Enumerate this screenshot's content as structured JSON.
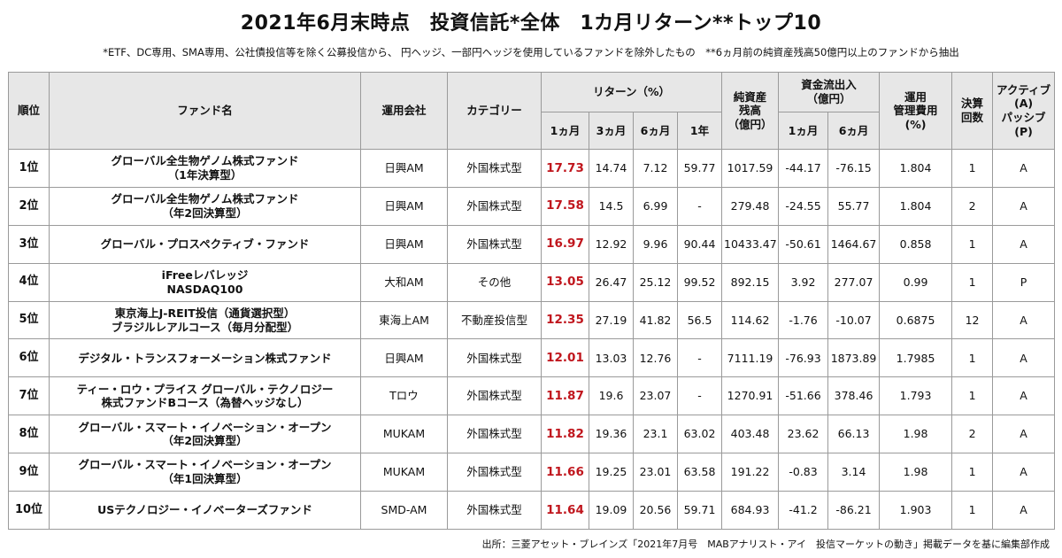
{
  "title": "2021年6月末時点　投資信託*全体　1カ月リターン**トップ10",
  "note": "*ETF、DC専用、SMA専用、公社債投信等を除く公募投信から、 円ヘッジ、一部円ヘッジを使用しているファンドを除外したもの　**6ヵ月前の純資産残高50億円以上のファンドから抽出",
  "source": "出所：三菱アセット・ブレインズ「2021年7月号　MABアナリスト・アイ　投信マーケットの動き」掲載データを基に編集部作成",
  "colors": {
    "header_bg": "#e7e7e7",
    "return_highlight": "#c0161d",
    "border": "#9a9a9a"
  },
  "headers": {
    "rank": "順位",
    "fund": "ファンド名",
    "company": "運用会社",
    "category": "カテゴリー",
    "return_group": "リターン（%）",
    "r1m": "1ヵ月",
    "r3m": "3ヵ月",
    "r6m": "6ヵ月",
    "r1y": "1年",
    "aum_l1": "純資産",
    "aum_l2": "残高",
    "aum_l3": "（億円）",
    "flow_group_l1": "資金流出入",
    "flow_group_l2": "（億円）",
    "f1m": "1ヵ月",
    "f6m": "6ヵ月",
    "fee_l1": "運用",
    "fee_l2": "管理費用",
    "fee_l3": "(%)",
    "settle_l1": "決算",
    "settle_l2": "回数",
    "ap_l1": "アクティブ",
    "ap_l2": "(A)",
    "ap_l3": "パッシブ",
    "ap_l4": "(P)"
  },
  "rows": [
    {
      "rank": "1位",
      "fund_l1": "グローバル全生物ゲノム株式ファンド",
      "fund_l2": "（1年決算型）",
      "company": "日興AM",
      "category": "外国株式型",
      "r1m": "17.73",
      "r3m": "14.74",
      "r6m": "7.12",
      "r1y": "59.77",
      "aum": "1017.59",
      "f1m": "-44.17",
      "f6m": "-76.15",
      "fee": "1.804",
      "settle": "1",
      "ap": "A"
    },
    {
      "rank": "2位",
      "fund_l1": "グローバル全生物ゲノム株式ファンド",
      "fund_l2": "（年2回決算型）",
      "company": "日興AM",
      "category": "外国株式型",
      "r1m": "17.58",
      "r3m": "14.5",
      "r6m": "6.99",
      "r1y": "-",
      "aum": "279.48",
      "f1m": "-24.55",
      "f6m": "55.77",
      "fee": "1.804",
      "settle": "2",
      "ap": "A"
    },
    {
      "rank": "3位",
      "fund_l1": "グローバル・プロスペクティブ・ファンド",
      "fund_l2": "",
      "company": "日興AM",
      "category": "外国株式型",
      "r1m": "16.97",
      "r3m": "12.92",
      "r6m": "9.96",
      "r1y": "90.44",
      "aum": "10433.47",
      "f1m": "-50.61",
      "f6m": "1464.67",
      "fee": "0.858",
      "settle": "1",
      "ap": "A"
    },
    {
      "rank": "4位",
      "fund_l1": "iFreeレバレッジ",
      "fund_l2": "NASDAQ100",
      "company": "大和AM",
      "category": "その他",
      "r1m": "13.05",
      "r3m": "26.47",
      "r6m": "25.12",
      "r1y": "99.52",
      "aum": "892.15",
      "f1m": "3.92",
      "f6m": "277.07",
      "fee": "0.99",
      "settle": "1",
      "ap": "P"
    },
    {
      "rank": "5位",
      "fund_l1": "東京海上J-REIT投信（通貨選択型）",
      "fund_l2": "ブラジルレアルコース（毎月分配型）",
      "company": "東海上AM",
      "category": "不動産投信型",
      "r1m": "12.35",
      "r3m": "27.19",
      "r6m": "41.82",
      "r1y": "56.5",
      "aum": "114.62",
      "f1m": "-1.76",
      "f6m": "-10.07",
      "fee": "0.6875",
      "settle": "12",
      "ap": "A"
    },
    {
      "rank": "6位",
      "fund_l1": "デジタル・トランスフォーメーション株式ファンド",
      "fund_l2": "",
      "company": "日興AM",
      "category": "外国株式型",
      "r1m": "12.01",
      "r3m": "13.03",
      "r6m": "12.76",
      "r1y": "-",
      "aum": "7111.19",
      "f1m": "-76.93",
      "f6m": "1873.89",
      "fee": "1.7985",
      "settle": "1",
      "ap": "A"
    },
    {
      "rank": "7位",
      "fund_l1": "ティー・ロウ・プライス グローバル・テクノロジー",
      "fund_l2": "株式ファンドBコース（為替ヘッジなし）",
      "company": "Tロウ",
      "category": "外国株式型",
      "r1m": "11.87",
      "r3m": "19.6",
      "r6m": "23.07",
      "r1y": "-",
      "aum": "1270.91",
      "f1m": "-51.66",
      "f6m": "378.46",
      "fee": "1.793",
      "settle": "1",
      "ap": "A"
    },
    {
      "rank": "8位",
      "fund_l1": "グローバル・スマート・イノベーション・オープン",
      "fund_l2": "（年2回決算型）",
      "company": "MUKAM",
      "category": "外国株式型",
      "r1m": "11.82",
      "r3m": "19.36",
      "r6m": "23.1",
      "r1y": "63.02",
      "aum": "403.48",
      "f1m": "23.62",
      "f6m": "66.13",
      "fee": "1.98",
      "settle": "2",
      "ap": "A"
    },
    {
      "rank": "9位",
      "fund_l1": "グローバル・スマート・イノベーション・オープン",
      "fund_l2": "（年1回決算型）",
      "company": "MUKAM",
      "category": "外国株式型",
      "r1m": "11.66",
      "r3m": "19.25",
      "r6m": "23.01",
      "r1y": "63.58",
      "aum": "191.22",
      "f1m": "-0.83",
      "f6m": "3.14",
      "fee": "1.98",
      "settle": "1",
      "ap": "A"
    },
    {
      "rank": "10位",
      "fund_l1": "USテクノロジー・イノベーターズファンド",
      "fund_l2": "",
      "company": "SMD-AM",
      "category": "外国株式型",
      "r1m": "11.64",
      "r3m": "19.09",
      "r6m": "20.56",
      "r1y": "59.71",
      "aum": "684.93",
      "f1m": "-41.2",
      "f6m": "-86.21",
      "fee": "1.903",
      "settle": "1",
      "ap": "A"
    }
  ]
}
